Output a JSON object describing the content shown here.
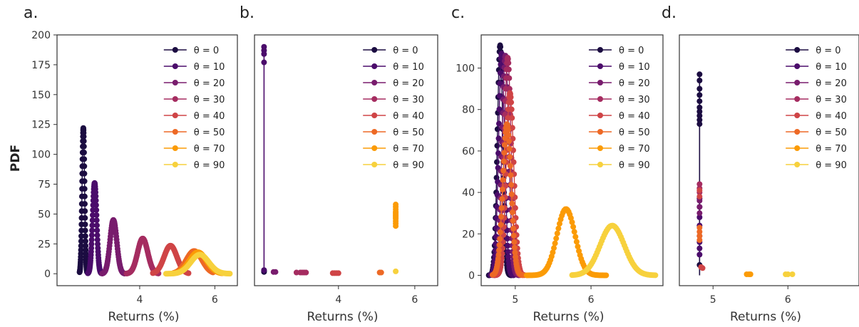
{
  "figure": {
    "ylabel": "PDF",
    "colors": {
      "0": "#1b0c41",
      "10": "#4b0c6b",
      "20": "#781c6d",
      "30": "#a52c60",
      "40": "#cf4446",
      "50": "#ed6925",
      "70": "#fb9b06",
      "90": "#f7d13d"
    }
  },
  "chart_data": [
    {
      "panel": "a.",
      "type": "scatter",
      "xlabel": "Returns (%)",
      "ylabel": "PDF",
      "xlim": [
        1.8,
        6.6
      ],
      "ylim": [
        -10,
        200
      ],
      "xticks": [
        "4",
        "6"
      ],
      "yticks": [
        "0",
        "25",
        "50",
        "75",
        "100",
        "125",
        "150",
        "175",
        "200"
      ],
      "grid": false,
      "legend_placement": "top-right",
      "series": [
        {
          "name": "θ = 0",
          "theta": "0",
          "kind": "gauss",
          "mu": 2.5,
          "sigma": 0.033,
          "peak": 122,
          "span": [
            2.4,
            2.6
          ]
        },
        {
          "name": "θ = 10",
          "theta": "10",
          "kind": "gauss",
          "mu": 2.8,
          "sigma": 0.055,
          "peak": 76,
          "span": [
            2.62,
            2.98
          ]
        },
        {
          "name": "θ = 20",
          "theta": "20",
          "kind": "gauss",
          "mu": 3.3,
          "sigma": 0.09,
          "peak": 45,
          "span": [
            3.0,
            3.6
          ]
        },
        {
          "name": "θ = 30",
          "theta": "30",
          "kind": "gauss",
          "mu": 4.08,
          "sigma": 0.135,
          "peak": 29.5,
          "span": [
            3.65,
            4.5
          ]
        },
        {
          "name": "θ = 40",
          "theta": "40",
          "kind": "gauss",
          "mu": 4.82,
          "sigma": 0.17,
          "peak": 23.5,
          "span": [
            4.35,
            5.3
          ]
        },
        {
          "name": "θ = 50",
          "theta": "50",
          "kind": "gauss",
          "mu": 5.45,
          "sigma": 0.21,
          "peak": 19,
          "span": [
            4.9,
            5.95
          ]
        },
        {
          "name": "θ = 70",
          "theta": "70",
          "kind": "gauss",
          "mu": 5.55,
          "sigma": 0.23,
          "peak": 18,
          "span": [
            4.9,
            6.2
          ]
        },
        {
          "name": "θ = 90",
          "theta": "90",
          "kind": "gauss",
          "mu": 5.6,
          "sigma": 0.24,
          "peak": 16,
          "span": [
            4.7,
            6.4
          ]
        }
      ]
    },
    {
      "panel": "b.",
      "type": "scatter",
      "xlabel": "Returns (%)",
      "ylabel": "",
      "xlim": [
        1.8,
        6.6
      ],
      "ylim": [
        -10,
        200
      ],
      "xticks": [
        "4",
        "6"
      ],
      "yticks": [],
      "grid": false,
      "legend_placement": "top-right",
      "series": [
        {
          "name": "θ = 0",
          "theta": "0",
          "kind": "points",
          "x": [
            2.05,
            2.05,
            2.05
          ],
          "y": [
            1.5,
            2,
            3
          ]
        },
        {
          "name": "θ = 10",
          "theta": "10",
          "kind": "spike",
          "x0": 2.05,
          "ytop": 190,
          "x": [
            2.05,
            2.05,
            2.05,
            2.05,
            2.05
          ],
          "y": [
            190,
            187,
            184,
            177,
            3
          ]
        },
        {
          "name": "θ = 20",
          "theta": "20",
          "kind": "points",
          "x": [
            2.3,
            2.35
          ],
          "y": [
            1.5,
            1.5
          ]
        },
        {
          "name": "θ = 30",
          "theta": "30",
          "kind": "points",
          "x": [
            2.9,
            3.0,
            3.05,
            3.1,
            3.15
          ],
          "y": [
            1,
            1,
            1,
            1,
            1
          ]
        },
        {
          "name": "θ = 40",
          "theta": "40",
          "kind": "points",
          "x": [
            3.85,
            3.9,
            3.95,
            4.0
          ],
          "y": [
            0.5,
            0.5,
            0.5,
            0.5
          ]
        },
        {
          "name": "θ = 50",
          "theta": "50",
          "kind": "points",
          "x": [
            5.08,
            5.12
          ],
          "y": [
            1,
            1
          ]
        },
        {
          "name": "θ = 70",
          "theta": "70",
          "kind": "points",
          "x": [
            5.5,
            5.5,
            5.5,
            5.5,
            5.5,
            5.5,
            5.5,
            5.5,
            5.5,
            5.5,
            5.5,
            5.5,
            5.5
          ],
          "y": [
            40,
            42,
            44,
            46,
            47,
            48,
            49,
            50,
            51,
            52,
            54,
            56,
            58
          ]
        },
        {
          "name": "θ = 90",
          "theta": "90",
          "kind": "points",
          "x": [
            5.5
          ],
          "y": [
            2
          ]
        }
      ]
    },
    {
      "panel": "c.",
      "type": "scatter",
      "xlabel": "Returns (%)",
      "ylabel": "",
      "xlim": [
        4.55,
        6.95
      ],
      "ylim": [
        -5,
        116
      ],
      "xticks": [
        "5",
        "6"
      ],
      "yticks": [
        "0",
        "20",
        "40",
        "60",
        "80",
        "100"
      ],
      "grid": false,
      "legend_placement": "top-right",
      "series": [
        {
          "name": "θ = 0",
          "theta": "0",
          "kind": "gauss",
          "mu": 4.8,
          "sigma": 0.036,
          "peak": 111,
          "span": [
            4.65,
            4.95
          ]
        },
        {
          "name": "θ = 10",
          "theta": "10",
          "kind": "gauss",
          "mu": 4.82,
          "sigma": 0.04,
          "peak": 107,
          "span": [
            4.67,
            4.98
          ]
        },
        {
          "name": "θ = 20",
          "theta": "20",
          "kind": "gauss",
          "mu": 4.87,
          "sigma": 0.045,
          "peak": 106,
          "span": [
            4.7,
            5.05
          ]
        },
        {
          "name": "θ = 30",
          "theta": "30",
          "kind": "gauss",
          "mu": 4.9,
          "sigma": 0.045,
          "peak": 105,
          "span": [
            4.72,
            5.07
          ]
        },
        {
          "name": "θ = 40",
          "theta": "40",
          "kind": "gauss",
          "mu": 4.93,
          "sigma": 0.05,
          "peak": 88,
          "span": [
            4.74,
            5.12
          ]
        },
        {
          "name": "θ = 50",
          "theta": "50",
          "kind": "gauss",
          "mu": 4.89,
          "sigma": 0.055,
          "peak": 73,
          "span": [
            4.7,
            5.1
          ]
        },
        {
          "name": "θ = 70",
          "theta": "70",
          "kind": "gauss",
          "mu": 5.67,
          "sigma": 0.12,
          "peak": 32,
          "span": [
            5.15,
            6.2
          ]
        },
        {
          "name": "θ = 90",
          "theta": "90",
          "kind": "gauss",
          "mu": 6.28,
          "sigma": 0.16,
          "peak": 24,
          "span": [
            5.75,
            6.85
          ]
        }
      ]
    },
    {
      "panel": "d.",
      "type": "scatter",
      "xlabel": "Returns (%)",
      "ylabel": "",
      "xlim": [
        4.55,
        6.95
      ],
      "ylim": [
        -5,
        116
      ],
      "xticks": [
        "5",
        "6"
      ],
      "yticks": [],
      "grid": false,
      "legend_placement": "top-right",
      "series": [
        {
          "name": "θ = 0",
          "theta": "0",
          "kind": "spike",
          "x0": 4.82,
          "ytop": 97,
          "x": [
            4.82,
            4.82,
            4.82,
            4.82,
            4.82,
            4.82,
            4.82,
            4.82,
            4.82,
            4.82,
            4.82
          ],
          "y": [
            97,
            94,
            90,
            87,
            84,
            81,
            79,
            77,
            75,
            73,
            5
          ]
        },
        {
          "name": "θ = 10",
          "theta": "10",
          "kind": "points",
          "x": [
            4.82,
            4.82,
            4.82,
            4.82,
            4.82,
            4.82,
            4.82,
            4.82
          ],
          "y": [
            10,
            13,
            16,
            19,
            24,
            28,
            33,
            37
          ]
        },
        {
          "name": "θ = 20",
          "theta": "20",
          "kind": "points",
          "x": [
            4.82,
            4.82,
            4.82
          ],
          "y": [
            30,
            33,
            36
          ]
        },
        {
          "name": "θ = 30",
          "theta": "30",
          "kind": "points",
          "x": [
            4.82,
            4.82,
            4.82
          ],
          "y": [
            40,
            42,
            44
          ]
        },
        {
          "name": "θ = 40",
          "theta": "40",
          "kind": "points",
          "x": [
            4.82,
            4.82,
            4.84,
            4.86
          ],
          "y": [
            38,
            41,
            4,
            3.5
          ]
        },
        {
          "name": "θ = 50",
          "theta": "50",
          "kind": "points",
          "x": [
            4.82,
            4.82,
            4.82,
            4.82
          ],
          "y": [
            17,
            19,
            21,
            23
          ]
        },
        {
          "name": "θ = 70",
          "theta": "70",
          "kind": "points",
          "x": [
            5.45,
            5.48,
            5.5
          ],
          "y": [
            0.5,
            0.5,
            0.5
          ]
        },
        {
          "name": "θ = 90",
          "theta": "90",
          "kind": "points",
          "x": [
            5.97,
            6.0,
            6.06
          ],
          "y": [
            0.5,
            0.5,
            0.5
          ]
        }
      ]
    }
  ]
}
